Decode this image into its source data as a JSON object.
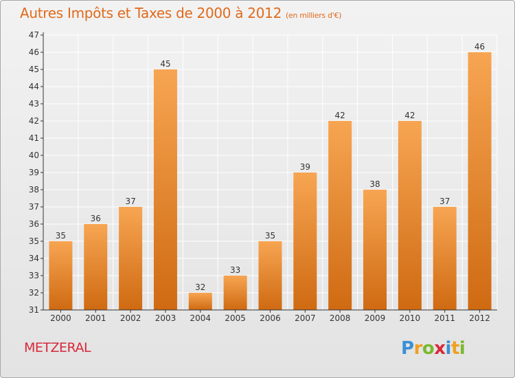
{
  "page": {
    "title": "Autres Impôts et Taxes de 2000 à 2012",
    "unit_note": "(en milliers d'€)",
    "commune": "METZERAL"
  },
  "logo": {
    "text": "Proxiti",
    "letters": [
      {
        "char": "P",
        "color": "#3b8fd6"
      },
      {
        "char": "r",
        "color": "#f0a020"
      },
      {
        "char": "o",
        "color": "#7ab82e"
      },
      {
        "char": "x",
        "color": "#d8283b"
      },
      {
        "char": "i",
        "color": "#3b8fd6"
      },
      {
        "char": "t",
        "color": "#f0a020"
      },
      {
        "char": "i",
        "color": "#7ab82e"
      }
    ]
  },
  "chart_data": {
    "type": "bar",
    "title": "Autres Impôts et Taxes de 2000 à 2012",
    "subtitle": "(en milliers d'€)",
    "xlabel": "",
    "ylabel": "",
    "categories": [
      "2000",
      "2001",
      "2002",
      "2003",
      "2004",
      "2005",
      "2006",
      "2007",
      "2008",
      "2009",
      "2010",
      "2011",
      "2012"
    ],
    "values": [
      35,
      36,
      37,
      45,
      32,
      33,
      35,
      39,
      42,
      38,
      42,
      37,
      46
    ],
    "ylim": [
      31,
      47
    ],
    "yticks": [
      31,
      32,
      33,
      34,
      35,
      36,
      37,
      38,
      39,
      40,
      41,
      42,
      43,
      44,
      45,
      46,
      47
    ],
    "grid": true,
    "legend": "none",
    "colors": {
      "bar_light": "#f7a552",
      "bar_dark": "#cf6a12",
      "grid": "#ffffff",
      "axis": "#333333"
    }
  }
}
